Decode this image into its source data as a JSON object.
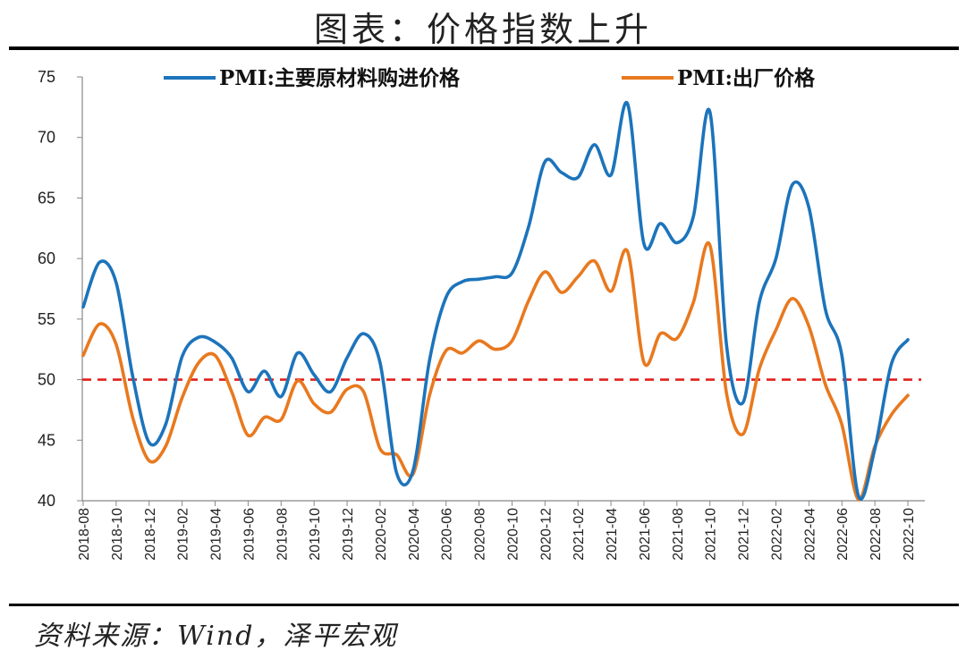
{
  "title": "图表：价格指数上升",
  "source": "资料来源：Wind，泽平宏观",
  "colors": {
    "series1": "#1c74bb",
    "series2": "#e8791f",
    "threshold": "#e0201c"
  },
  "chart_data": {
    "type": "line",
    "title": "图表：价格指数上升",
    "xlabel": "",
    "ylabel": "",
    "ylim": [
      40,
      75
    ],
    "yticks": [
      40,
      45,
      50,
      55,
      60,
      65,
      70,
      75
    ],
    "grid": false,
    "legend": "top",
    "x": [
      "2018-08",
      "2018-09",
      "2018-10",
      "2018-11",
      "2018-12",
      "2019-01",
      "2019-02",
      "2019-03",
      "2019-04",
      "2019-05",
      "2019-06",
      "2019-07",
      "2019-08",
      "2019-09",
      "2019-10",
      "2019-11",
      "2019-12",
      "2020-01",
      "2020-02",
      "2020-03",
      "2020-04",
      "2020-05",
      "2020-06",
      "2020-07",
      "2020-08",
      "2020-09",
      "2020-10",
      "2020-11",
      "2020-12",
      "2021-01",
      "2021-02",
      "2021-03",
      "2021-04",
      "2021-05",
      "2021-06",
      "2021-07",
      "2021-08",
      "2021-09",
      "2021-10",
      "2021-11",
      "2021-12",
      "2022-01",
      "2022-02",
      "2022-03",
      "2022-04",
      "2022-05",
      "2022-06",
      "2022-07",
      "2022-08",
      "2022-09",
      "2022-10"
    ],
    "xticks": [
      "2018-08",
      "2018-10",
      "2018-12",
      "2019-02",
      "2019-04",
      "2019-06",
      "2019-08",
      "2019-10",
      "2019-12",
      "2020-02",
      "2020-04",
      "2020-06",
      "2020-08",
      "2020-10",
      "2020-12",
      "2021-02",
      "2021-04",
      "2021-06",
      "2021-08",
      "2021-10",
      "2021-12",
      "2022-02",
      "2022-04",
      "2022-06",
      "2022-08",
      "2022-10"
    ],
    "reference_line": {
      "y": 50,
      "style": "dashed"
    },
    "series": [
      {
        "name": "PMI:主要原材料购进价格",
        "values": [
          56.0,
          59.7,
          58.0,
          50.3,
          44.8,
          46.3,
          51.9,
          53.5,
          53.1,
          51.8,
          49.0,
          50.7,
          48.6,
          52.2,
          50.4,
          49.0,
          51.8,
          53.8,
          51.4,
          42.3,
          42.5,
          51.6,
          56.8,
          58.1,
          58.3,
          58.5,
          58.8,
          62.6,
          68.0,
          67.1,
          66.7,
          69.4,
          66.9,
          72.8,
          61.2,
          62.9,
          61.3,
          63.5,
          72.1,
          52.9,
          48.1,
          56.4,
          60.0,
          66.1,
          64.2,
          55.8,
          52.0,
          40.4,
          44.3,
          51.3,
          53.3
        ]
      },
      {
        "name": "PMI:出厂价格",
        "values": [
          52.0,
          54.6,
          52.9,
          46.9,
          43.3,
          44.5,
          48.5,
          51.4,
          52.0,
          49.0,
          45.4,
          46.9,
          46.7,
          49.9,
          48.0,
          47.3,
          49.2,
          49.0,
          44.3,
          43.8,
          42.2,
          48.7,
          52.4,
          52.2,
          53.2,
          52.5,
          53.2,
          56.5,
          58.9,
          57.2,
          58.5,
          59.8,
          57.3,
          60.6,
          51.4,
          53.8,
          53.4,
          56.4,
          61.1,
          48.9,
          45.5,
          50.9,
          54.1,
          56.7,
          54.4,
          49.6,
          46.3,
          40.1,
          44.5,
          47.1,
          48.7
        ]
      }
    ]
  }
}
